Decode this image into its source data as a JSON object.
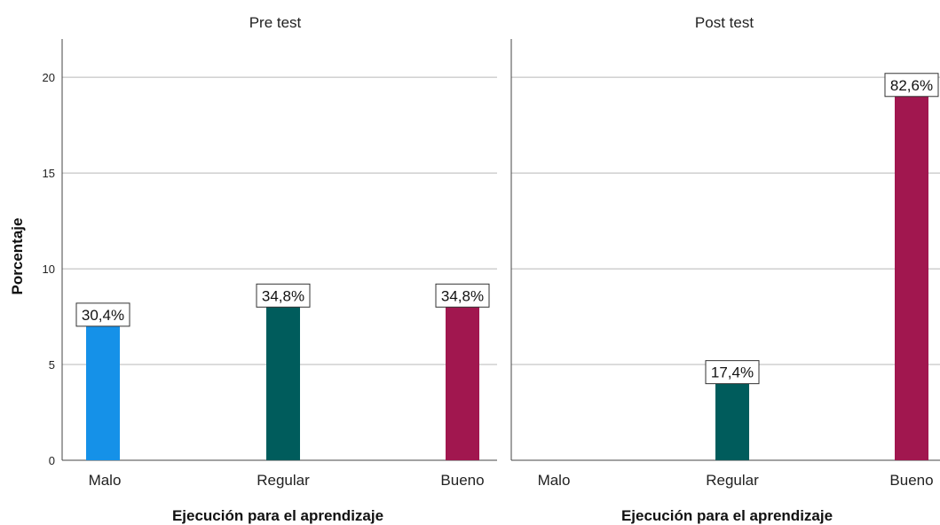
{
  "chart_data": {
    "type": "bar",
    "ylabel": "Porcentaje",
    "ylim": [
      0,
      22
    ],
    "yticks": [
      0,
      5,
      10,
      15,
      20
    ],
    "grid": true,
    "categories": [
      "Malo",
      "Regular",
      "Bueno"
    ],
    "category_colors": [
      "#1591e8",
      "#005c5c",
      "#a1174f"
    ],
    "panels": [
      {
        "title": "Pre test",
        "xlabel": "Ejecución para el aprendizaje",
        "values": [
          7,
          8,
          8
        ],
        "labels": [
          "30,4%",
          "34,8%",
          "34,8%"
        ]
      },
      {
        "title": "Post test",
        "xlabel": "Ejecución para el aprendizaje",
        "values": [
          0,
          4,
          19
        ],
        "labels": [
          "",
          "17,4%",
          "82,6%"
        ]
      }
    ]
  }
}
